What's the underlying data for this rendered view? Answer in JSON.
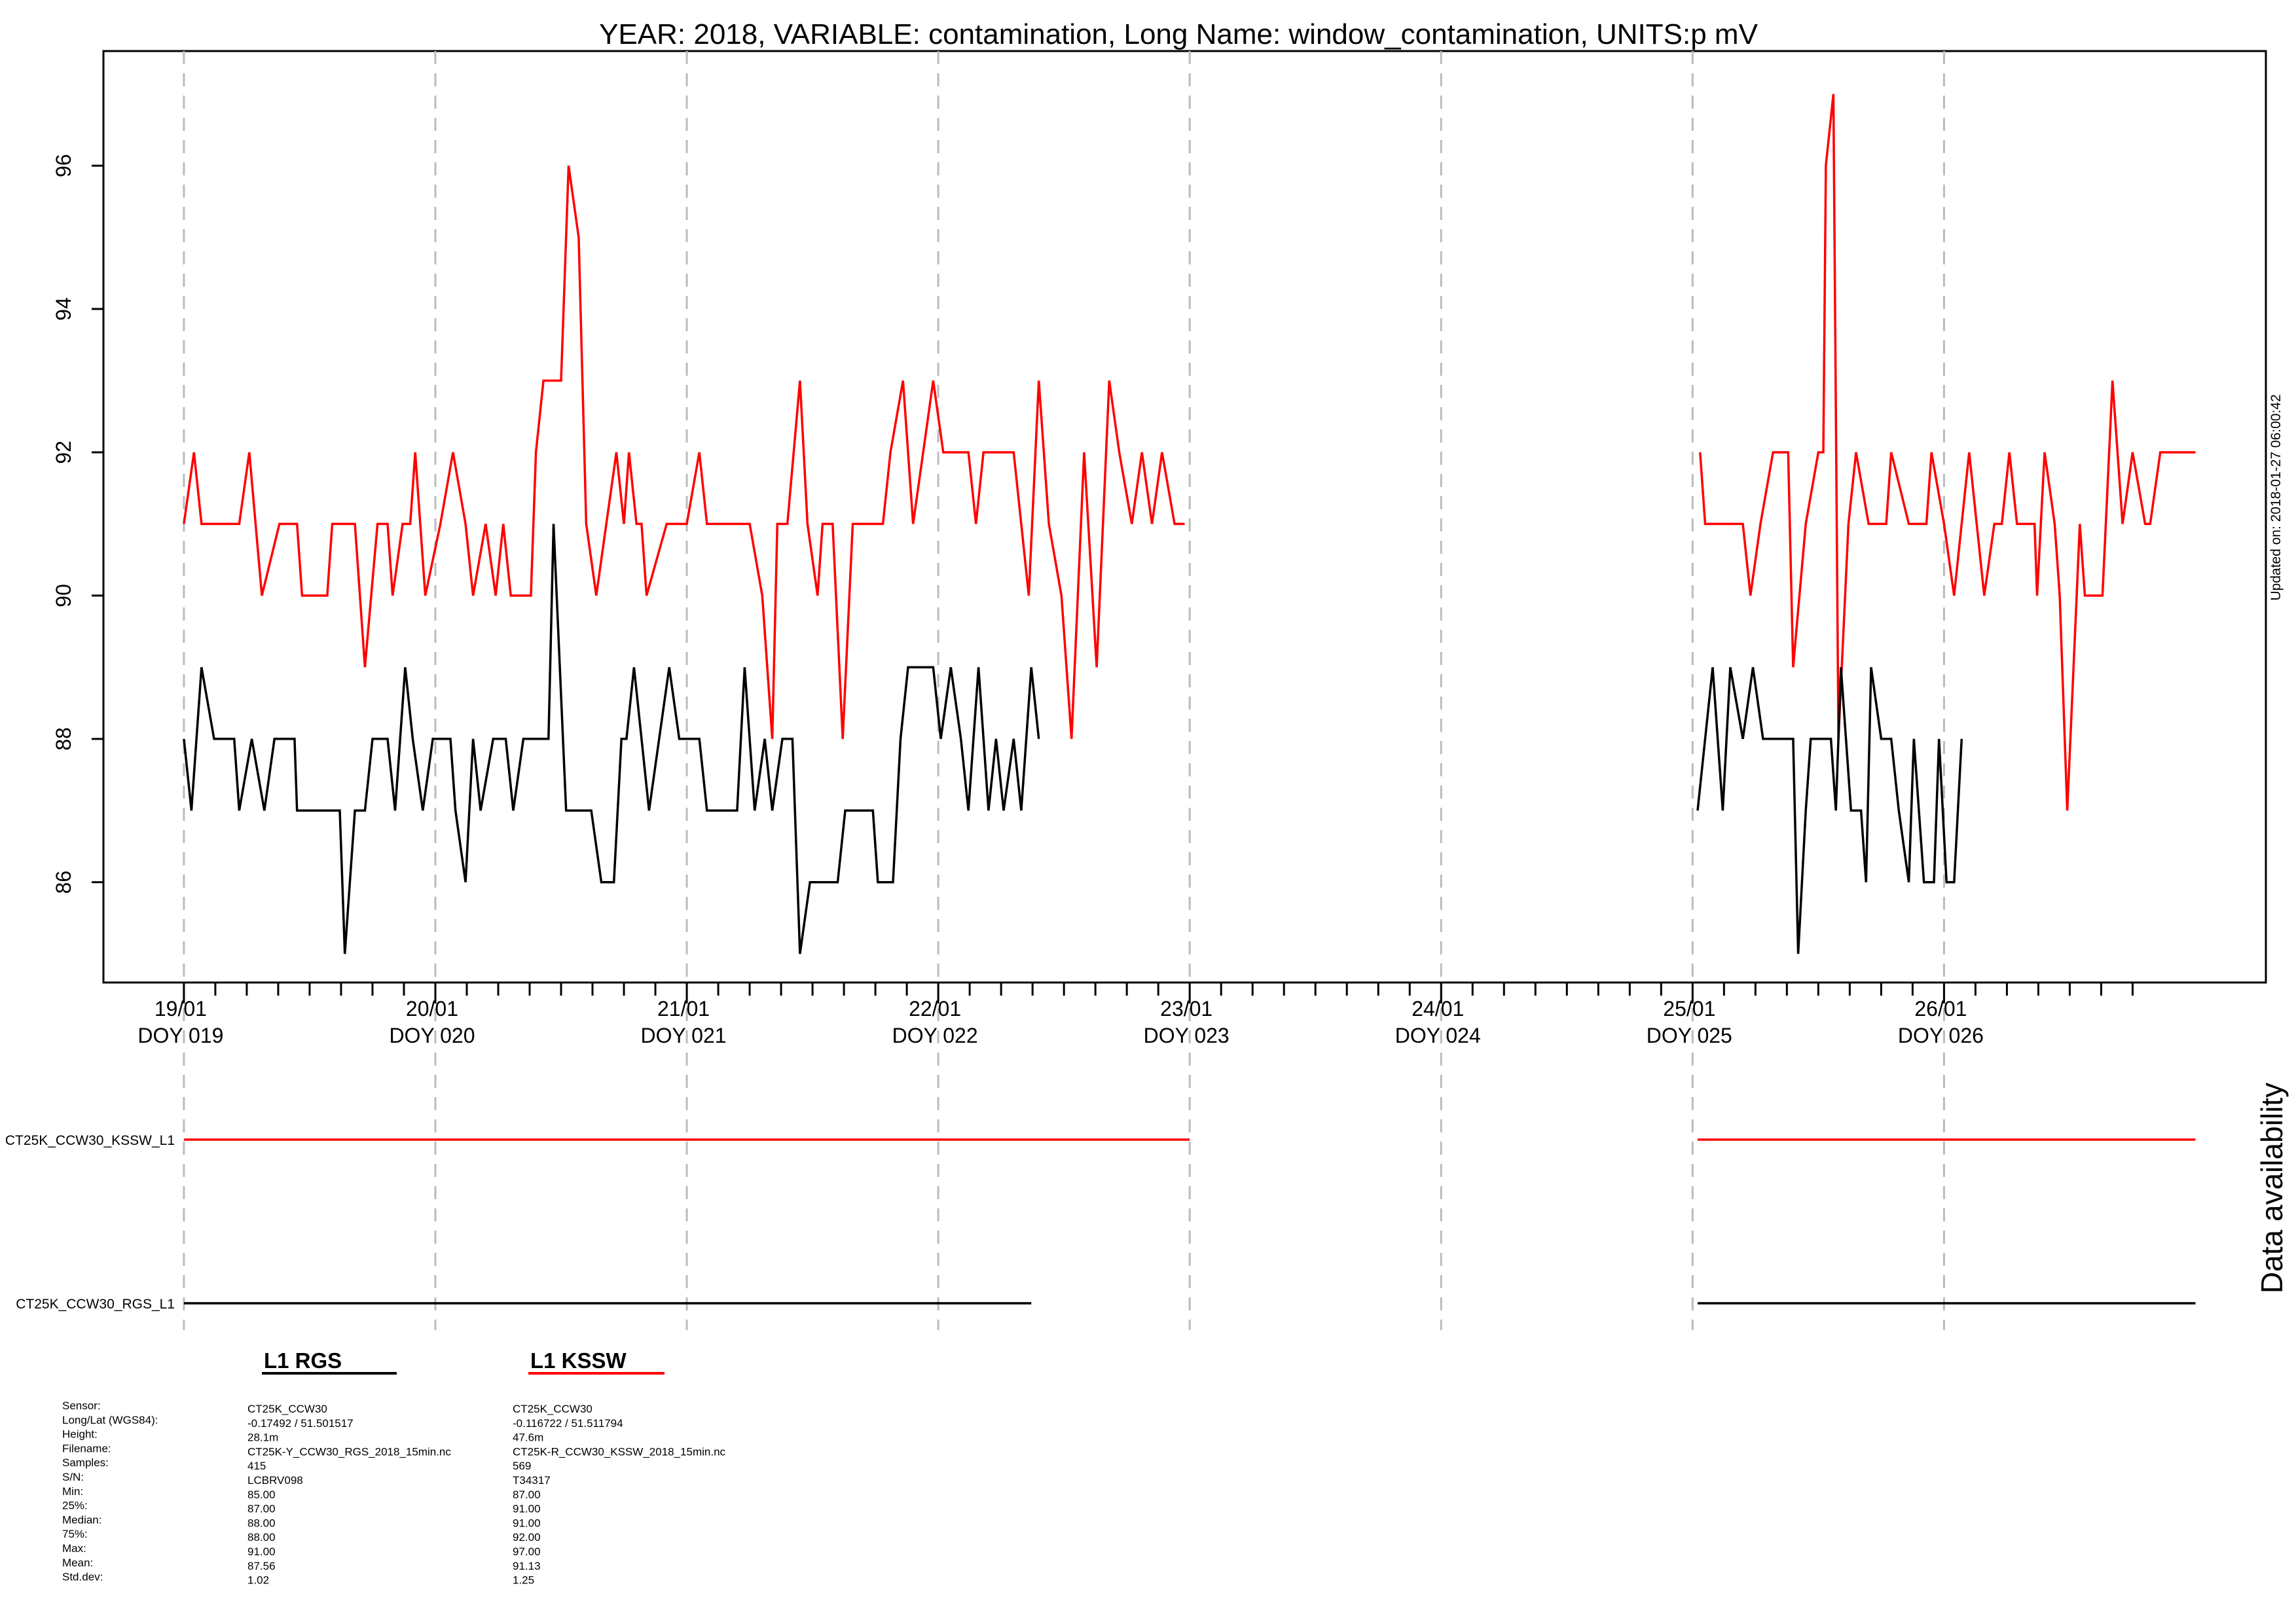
{
  "chart_data": {
    "type": "line",
    "title": "YEAR: 2018, VARIABLE: contamination, Long Name: window_contamination, UNITS:p mV",
    "updated": "Updated on: 2018-01-27 06:00:42",
    "ylim": [
      84.6,
      97.6
    ],
    "xlim": [
      -0.32,
      8.28
    ],
    "yticks": [
      "86",
      "88",
      "90",
      "92",
      "94",
      "96"
    ],
    "ytick_values": [
      86,
      88,
      90,
      92,
      94,
      96
    ],
    "day_ticks": [
      {
        "date": "19/01",
        "doy": "DOY 019"
      },
      {
        "date": "20/01",
        "doy": "DOY 020"
      },
      {
        "date": "21/01",
        "doy": "DOY 021"
      },
      {
        "date": "22/01",
        "doy": "DOY 022"
      },
      {
        "date": "23/01",
        "doy": "DOY 023"
      },
      {
        "date": "24/01",
        "doy": "DOY 024"
      },
      {
        "date": "25/01",
        "doy": "DOY 025"
      },
      {
        "date": "26/01",
        "doy": "DOY 026"
      }
    ],
    "grid": "vertical dashed at day boundaries",
    "series": [
      {
        "name": "L1 KSSW",
        "color": "#ff0000",
        "x_unit": "days since 2018-01-19 00:00",
        "points": [
          [
            0.0,
            91
          ],
          [
            0.04,
            92
          ],
          [
            0.07,
            91
          ],
          [
            0.22,
            91
          ],
          [
            0.26,
            92
          ],
          [
            0.31,
            90
          ],
          [
            0.38,
            91
          ],
          [
            0.45,
            91
          ],
          [
            0.47,
            90
          ],
          [
            0.57,
            90
          ],
          [
            0.59,
            91
          ],
          [
            0.68,
            91
          ],
          [
            0.72,
            89
          ],
          [
            0.77,
            91
          ],
          [
            0.81,
            91
          ],
          [
            0.83,
            90
          ],
          [
            0.87,
            91
          ],
          [
            0.9,
            91
          ],
          [
            0.92,
            92
          ],
          [
            0.96,
            90
          ],
          [
            1.02,
            91
          ],
          [
            1.07,
            92
          ],
          [
            1.12,
            91
          ],
          [
            1.15,
            90
          ],
          [
            1.2,
            91
          ],
          [
            1.24,
            90
          ],
          [
            1.27,
            91
          ],
          [
            1.3,
            90
          ],
          [
            1.38,
            90
          ],
          [
            1.4,
            92
          ],
          [
            1.43,
            93
          ],
          [
            1.5,
            93
          ],
          [
            1.53,
            96
          ],
          [
            1.57,
            95
          ],
          [
            1.6,
            91
          ],
          [
            1.64,
            90
          ],
          [
            1.68,
            91
          ],
          [
            1.72,
            92
          ],
          [
            1.75,
            91
          ],
          [
            1.77,
            92
          ],
          [
            1.8,
            91
          ],
          [
            1.82,
            91
          ],
          [
            1.84,
            90
          ],
          [
            1.92,
            91
          ],
          [
            2.0,
            91
          ],
          [
            2.05,
            92
          ],
          [
            2.08,
            91
          ],
          [
            2.25,
            91
          ],
          [
            2.3,
            90
          ],
          [
            2.34,
            88
          ],
          [
            2.36,
            91
          ],
          [
            2.4,
            91
          ],
          [
            2.45,
            93
          ],
          [
            2.48,
            91
          ],
          [
            2.52,
            90
          ],
          [
            2.54,
            91
          ],
          [
            2.58,
            91
          ],
          [
            2.62,
            88
          ],
          [
            2.66,
            91
          ],
          [
            2.78,
            91
          ],
          [
            2.81,
            92
          ],
          [
            2.86,
            93
          ],
          [
            2.9,
            91
          ],
          [
            2.94,
            92
          ],
          [
            2.98,
            93
          ],
          [
            3.02,
            92
          ],
          [
            3.12,
            92
          ],
          [
            3.15,
            91
          ],
          [
            3.18,
            92
          ],
          [
            3.3,
            92
          ],
          [
            3.33,
            91
          ],
          [
            3.36,
            90
          ],
          [
            3.4,
            93
          ],
          [
            3.44,
            91
          ],
          [
            3.49,
            90
          ],
          [
            3.53,
            88
          ],
          [
            3.58,
            92
          ],
          [
            3.63,
            89
          ],
          [
            3.68,
            93
          ],
          [
            3.72,
            92
          ],
          [
            3.77,
            91
          ],
          [
            3.81,
            92
          ],
          [
            3.85,
            91
          ],
          [
            3.89,
            92
          ],
          [
            3.94,
            91
          ],
          [
            3.98,
            91
          ]
        ],
        "segments": [
          [
            0.0,
            3.98
          ],
          [
            6.0,
            8.0
          ]
        ],
        "points_b": [
          [
            6.03,
            92
          ],
          [
            6.05,
            91
          ],
          [
            6.2,
            91
          ],
          [
            6.23,
            90
          ],
          [
            6.27,
            91
          ],
          [
            6.32,
            92
          ],
          [
            6.38,
            92
          ],
          [
            6.4,
            89
          ],
          [
            6.45,
            91
          ],
          [
            6.5,
            92
          ],
          [
            6.52,
            92
          ],
          [
            6.53,
            96
          ],
          [
            6.56,
            97
          ],
          [
            6.58,
            88
          ],
          [
            6.62,
            91
          ],
          [
            6.65,
            92
          ],
          [
            6.7,
            91
          ],
          [
            6.77,
            91
          ],
          [
            6.79,
            92
          ],
          [
            6.86,
            91
          ],
          [
            6.93,
            91
          ],
          [
            6.95,
            92
          ],
          [
            7.0,
            91
          ],
          [
            7.04,
            90
          ],
          [
            7.07,
            91
          ],
          [
            7.1,
            92
          ],
          [
            7.13,
            91
          ],
          [
            7.16,
            90
          ],
          [
            7.2,
            91
          ],
          [
            7.23,
            91
          ],
          [
            7.26,
            92
          ],
          [
            7.29,
            91
          ],
          [
            7.36,
            91
          ],
          [
            7.37,
            90
          ],
          [
            7.4,
            92
          ],
          [
            7.44,
            91
          ],
          [
            7.46,
            90
          ],
          [
            7.49,
            87
          ],
          [
            7.54,
            91
          ],
          [
            7.56,
            90
          ],
          [
            7.63,
            90
          ],
          [
            7.67,
            93
          ],
          [
            7.71,
            91
          ],
          [
            7.75,
            92
          ],
          [
            7.8,
            91
          ],
          [
            7.82,
            91
          ],
          [
            7.86,
            92
          ],
          [
            8.0,
            92
          ]
        ]
      },
      {
        "name": "L1 RGS",
        "color": "#000000",
        "x_unit": "days since 2018-01-19 00:00",
        "points": [
          [
            0.0,
            88
          ],
          [
            0.03,
            87
          ],
          [
            0.07,
            89
          ],
          [
            0.12,
            88
          ],
          [
            0.2,
            88
          ],
          [
            0.22,
            87
          ],
          [
            0.27,
            88
          ],
          [
            0.32,
            87
          ],
          [
            0.36,
            88
          ],
          [
            0.44,
            88
          ],
          [
            0.45,
            87
          ],
          [
            0.62,
            87
          ],
          [
            0.64,
            85
          ],
          [
            0.68,
            87
          ],
          [
            0.72,
            87
          ],
          [
            0.75,
            88
          ],
          [
            0.81,
            88
          ],
          [
            0.84,
            87
          ],
          [
            0.88,
            89
          ],
          [
            0.91,
            88
          ],
          [
            0.95,
            87
          ],
          [
            0.99,
            88
          ],
          [
            1.06,
            88
          ],
          [
            1.08,
            87
          ],
          [
            1.12,
            86
          ],
          [
            1.15,
            88
          ],
          [
            1.18,
            87
          ],
          [
            1.23,
            88
          ],
          [
            1.28,
            88
          ],
          [
            1.31,
            87
          ],
          [
            1.35,
            88
          ],
          [
            1.45,
            88
          ],
          [
            1.47,
            91
          ],
          [
            1.52,
            87
          ],
          [
            1.62,
            87
          ],
          [
            1.66,
            86
          ],
          [
            1.71,
            86
          ],
          [
            1.74,
            88
          ],
          [
            1.76,
            88
          ],
          [
            1.79,
            89
          ],
          [
            1.82,
            88
          ],
          [
            1.85,
            87
          ],
          [
            1.89,
            88
          ],
          [
            1.93,
            89
          ],
          [
            1.97,
            88
          ],
          [
            2.05,
            88
          ],
          [
            2.08,
            87
          ],
          [
            2.2,
            87
          ],
          [
            2.23,
            89
          ],
          [
            2.27,
            87
          ],
          [
            2.31,
            88
          ],
          [
            2.34,
            87
          ],
          [
            2.38,
            88
          ],
          [
            2.42,
            88
          ],
          [
            2.45,
            85
          ],
          [
            2.49,
            86
          ],
          [
            2.6,
            86
          ],
          [
            2.63,
            87
          ],
          [
            2.74,
            87
          ],
          [
            2.76,
            86
          ],
          [
            2.82,
            86
          ],
          [
            2.85,
            88
          ],
          [
            2.88,
            89
          ],
          [
            2.98,
            89
          ],
          [
            3.01,
            88
          ],
          [
            3.05,
            89
          ],
          [
            3.09,
            88
          ],
          [
            3.12,
            87
          ],
          [
            3.16,
            89
          ],
          [
            3.2,
            87
          ],
          [
            3.23,
            88
          ],
          [
            3.26,
            87
          ],
          [
            3.3,
            88
          ],
          [
            3.33,
            87
          ],
          [
            3.37,
            89
          ],
          [
            3.4,
            88
          ]
        ],
        "segments": [
          [
            0.0,
            3.4
          ],
          [
            6.02,
            8.0
          ]
        ],
        "points_b": [
          [
            6.02,
            87
          ],
          [
            6.08,
            89
          ],
          [
            6.12,
            87
          ],
          [
            6.15,
            89
          ],
          [
            6.2,
            88
          ],
          [
            6.24,
            89
          ],
          [
            6.28,
            88
          ],
          [
            6.4,
            88
          ],
          [
            6.42,
            85
          ],
          [
            6.45,
            87
          ],
          [
            6.47,
            88
          ],
          [
            6.55,
            88
          ],
          [
            6.57,
            87
          ],
          [
            6.59,
            89
          ],
          [
            6.63,
            87
          ],
          [
            6.67,
            87
          ],
          [
            6.69,
            86
          ],
          [
            6.71,
            89
          ],
          [
            6.75,
            88
          ],
          [
            6.79,
            88
          ],
          [
            6.82,
            87
          ],
          [
            6.86,
            86
          ],
          [
            6.88,
            88
          ],
          [
            6.92,
            86
          ],
          [
            6.96,
            86
          ],
          [
            6.98,
            88
          ],
          [
            7.01,
            86
          ],
          [
            7.04,
            86
          ],
          [
            7.07,
            88
          ]
        ]
      }
    ]
  },
  "availability": {
    "ylabel": "Data availability",
    "rows": [
      {
        "label": "CT25K_CCW30_KSSW_L1",
        "color": "#ff0000",
        "ranges": [
          [
            0.0,
            4.0
          ],
          [
            6.02,
            8.0
          ]
        ]
      },
      {
        "label": "CT25K_CCW30_RGS_L1",
        "color": "#000000",
        "ranges": [
          [
            0.0,
            3.37
          ],
          [
            6.02,
            8.0
          ]
        ]
      }
    ]
  },
  "legend": [
    {
      "label": "L1 RGS",
      "color": "#000000"
    },
    {
      "label": "L1 KSSW",
      "color": "#ff0000"
    }
  ],
  "info": {
    "row_labels": [
      "Sensor:",
      "Long/Lat (WGS84):",
      "Height:",
      "Filename:",
      "Samples:",
      "S/N:",
      "Min:",
      "25%:",
      "Median:",
      "75%:",
      "Max:",
      "Mean:",
      "Std.dev:"
    ],
    "rgs": [
      "CT25K_CCW30",
      "-0.17492 / 51.501517",
      "28.1m",
      "CT25K-Y_CCW30_RGS_2018_15min.nc",
      "415",
      "LCBRV098",
      "85.00",
      "87.00",
      "88.00",
      "88.00",
      "91.00",
      "87.56",
      "1.02"
    ],
    "kssw": [
      "CT25K_CCW30",
      "-0.116722 / 51.511794",
      "47.6m",
      "CT25K-R_CCW30_KSSW_2018_15min.nc",
      "569",
      "T34317",
      "87.00",
      "91.00",
      "91.00",
      "92.00",
      "97.00",
      "91.13",
      "1.25"
    ]
  }
}
